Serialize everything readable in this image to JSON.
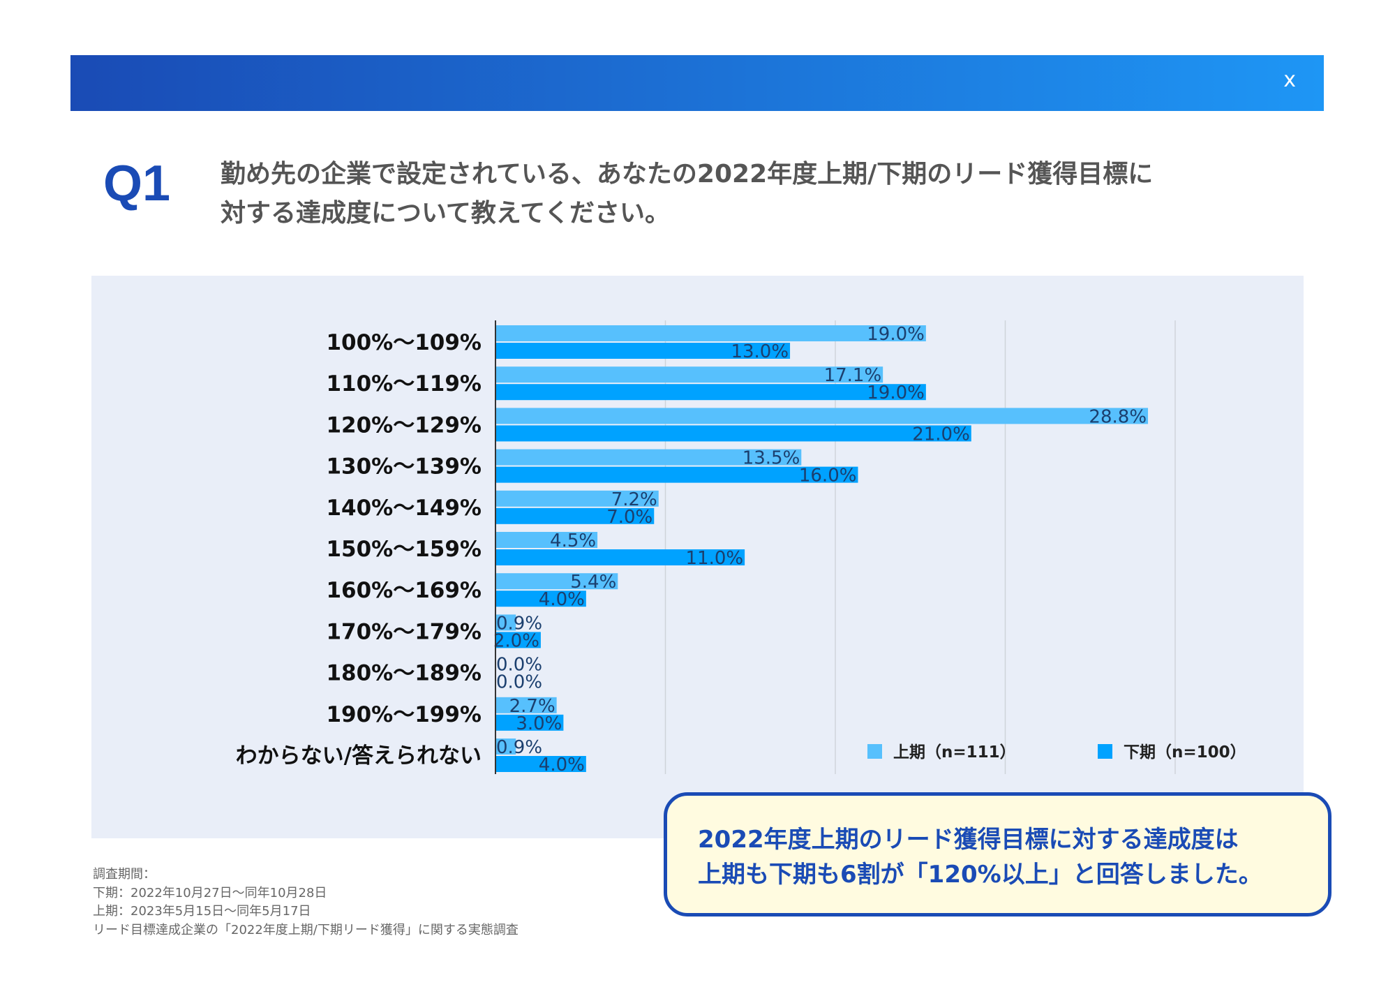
{
  "header": {
    "close_label": "x"
  },
  "question": {
    "number": "Q1",
    "lines": [
      "勤め先の企業で設定されている、あなたの2022年度上期/下期のリード獲得目標に",
      "対する達成度について教えてください。"
    ]
  },
  "chart_data": {
    "type": "bar",
    "orientation": "horizontal",
    "categories": [
      "100%〜109%",
      "110%〜119%",
      "120%〜129%",
      "130%〜139%",
      "140%〜149%",
      "150%〜159%",
      "160%〜169%",
      "170%〜179%",
      "180%〜189%",
      "190%〜199%",
      "わからない/答えられない"
    ],
    "series": [
      {
        "name": "上期（n=111）",
        "color": "#57c0fd",
        "values": [
          19.0,
          17.1,
          28.8,
          13.5,
          7.2,
          4.5,
          5.4,
          0.9,
          0.0,
          2.7,
          0.9
        ],
        "labels": [
          "19.0%",
          "17.1%",
          "28.8%",
          "13.5%",
          "7.2%",
          "4.5%",
          "5.4%",
          "0.9%",
          "0.0%",
          "2.7%",
          "0.9%"
        ]
      },
      {
        "name": "下期（n=100）",
        "color": "#00a2ff",
        "values": [
          13.0,
          19.0,
          21.0,
          16.0,
          7.0,
          11.0,
          4.0,
          2.0,
          0.0,
          3.0,
          4.0
        ],
        "labels": [
          "13.0%",
          "19.0%",
          "21.0%",
          "16.0%",
          "7.0%",
          "11.0%",
          "4.0%",
          "2.0%",
          "0.0%",
          "3.0%",
          "4.0%"
        ]
      }
    ],
    "xlim": [
      0,
      30
    ],
    "grid": true,
    "gridlines": [
      7.5,
      15,
      22.5,
      30
    ],
    "legend_position": "bottom-right",
    "label_color": "#1b3f6e"
  },
  "callout": {
    "lines": [
      "2022年度上期のリード獲得目標に対する達成度は",
      "上期も下期も6割が「120%以上」と回答しました。"
    ]
  },
  "footer": {
    "lines": [
      "調査期間：",
      "下期：2022年10月27日〜同年10月28日",
      "上期：2023年5月15日〜同年5月17日",
      "リード目標達成企業の「2022年度上期/下期リード獲得」に関する実態調査"
    ]
  }
}
